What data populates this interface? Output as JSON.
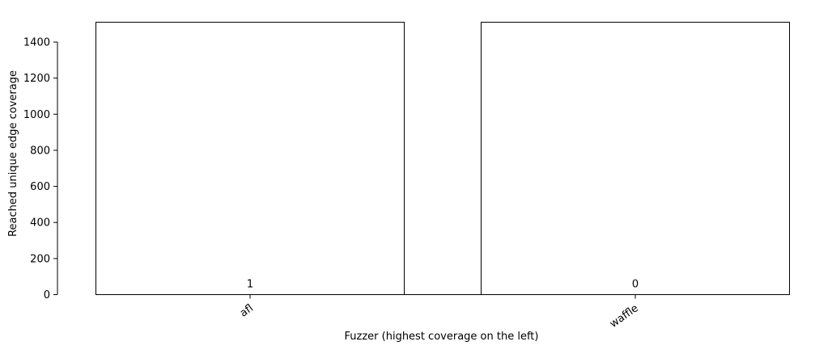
{
  "chart_data": {
    "type": "bar",
    "categories": [
      "afl",
      "waffle"
    ],
    "values": [
      1510,
      1510
    ],
    "annotations": [
      "1",
      "0"
    ],
    "xlabel": "Fuzzer (highest coverage on the left)",
    "ylabel": "Reached unique edge coverage",
    "ylim": [
      0,
      1510
    ],
    "yticks": [
      0,
      200,
      400,
      600,
      800,
      1000,
      1200,
      1400
    ],
    "xtick_rotation_deg": 35,
    "grid": false,
    "legend": "none",
    "colors": {
      "bar_fill": "#ffffff",
      "bar_edge": "#000000",
      "axis": "#000000"
    }
  }
}
